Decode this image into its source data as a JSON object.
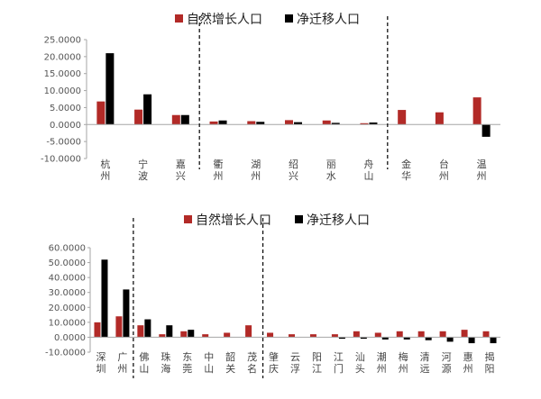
{
  "chart_data": [
    {
      "type": "bar",
      "legend": [
        "自然增长人口",
        "净迁移人口"
      ],
      "colors": [
        "#b22a27",
        "#000000"
      ],
      "categories": [
        "杭州",
        "宁波",
        "嘉兴",
        "衢州",
        "湖州",
        "绍兴",
        "丽水",
        "舟山",
        "金华",
        "台州",
        "温州"
      ],
      "series": [
        {
          "name": "自然增长人口",
          "values": [
            6.8,
            4.4,
            2.8,
            0.9,
            1.0,
            1.3,
            1.2,
            0.4,
            4.3,
            3.6,
            8.0
          ]
        },
        {
          "name": "净迁移人口",
          "values": [
            21.0,
            8.9,
            2.8,
            1.2,
            0.8,
            0.7,
            0.5,
            0.6,
            0.0,
            0.0,
            -3.6
          ]
        }
      ],
      "ylim": [
        -10,
        25
      ],
      "yticks": [
        "25.0000",
        "20.0000",
        "15.0000",
        "10.0000",
        "5.0000",
        "0.0000",
        "-5.0000",
        "-10.0000"
      ],
      "divider_after_index": [
        2,
        7
      ]
    },
    {
      "type": "bar",
      "legend": [
        "自然增长人口",
        "净迁移人口"
      ],
      "colors": [
        "#b22a27",
        "#000000"
      ],
      "categories": [
        "深圳",
        "广州",
        "佛山",
        "珠海",
        "东莞",
        "中山",
        "韶关",
        "茂名",
        "肇庆",
        "云浮",
        "阳江",
        "江门",
        "汕头",
        "潮州",
        "梅州",
        "清远",
        "河源",
        "惠州",
        "揭阳"
      ],
      "series": [
        {
          "name": "自然增长人口",
          "values": [
            10.0,
            14.0,
            8.0,
            2.0,
            4.0,
            2.0,
            3.0,
            8.0,
            3.0,
            2.0,
            2.0,
            2.0,
            4.0,
            3.0,
            4.0,
            4.0,
            4.0,
            5.0,
            4.0
          ]
        },
        {
          "name": "净迁移人口",
          "values": [
            52.0,
            32.0,
            12.0,
            8.0,
            5.0,
            0.0,
            0.0,
            0.0,
            0.0,
            0.0,
            0.0,
            -1.0,
            -1.0,
            -1.5,
            -1.5,
            -2.0,
            -3.0,
            -4.0,
            -4.0
          ]
        }
      ],
      "ylim": [
        -10,
        60
      ],
      "yticks": [
        "60.0000",
        "50.0000",
        "40.0000",
        "30.0000",
        "20.0000",
        "10.0000",
        "0.0000",
        "-10.0000"
      ],
      "divider_after_index": [
        1,
        7
      ]
    }
  ]
}
